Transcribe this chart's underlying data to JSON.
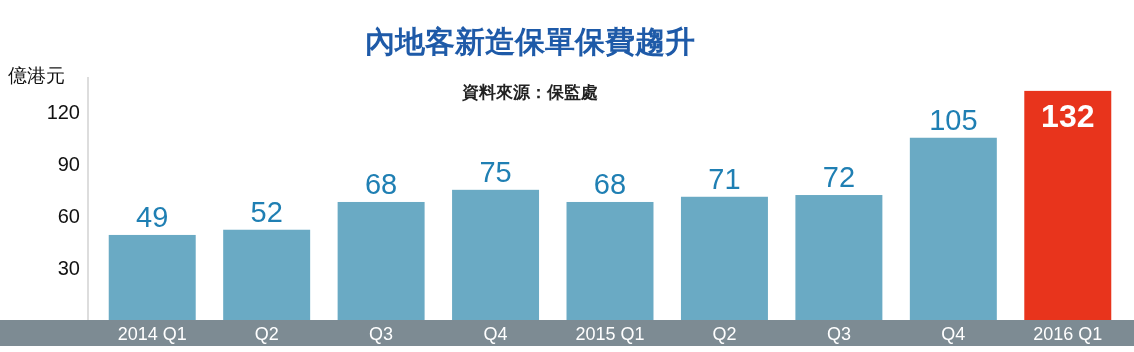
{
  "chart_data": {
    "type": "bar",
    "title": "內地客新造保單保費趨升",
    "subtitle": "資料來源：保監處",
    "ylabel": "億港元",
    "categories": [
      "2014 Q1",
      "Q2",
      "Q3",
      "Q4",
      "2015 Q1",
      "Q2",
      "Q3",
      "Q4",
      "2016 Q1"
    ],
    "values": [
      49,
      52,
      68,
      75,
      68,
      71,
      72,
      105,
      132
    ],
    "colors": [
      "#6aaac4",
      "#6aaac4",
      "#6aaac4",
      "#6aaac4",
      "#6aaac4",
      "#6aaac4",
      "#6aaac4",
      "#6aaac4",
      "#e8341c"
    ],
    "ylim": [
      0,
      140
    ],
    "yticks": [
      30,
      60,
      90,
      120
    ],
    "data_labels": true
  }
}
